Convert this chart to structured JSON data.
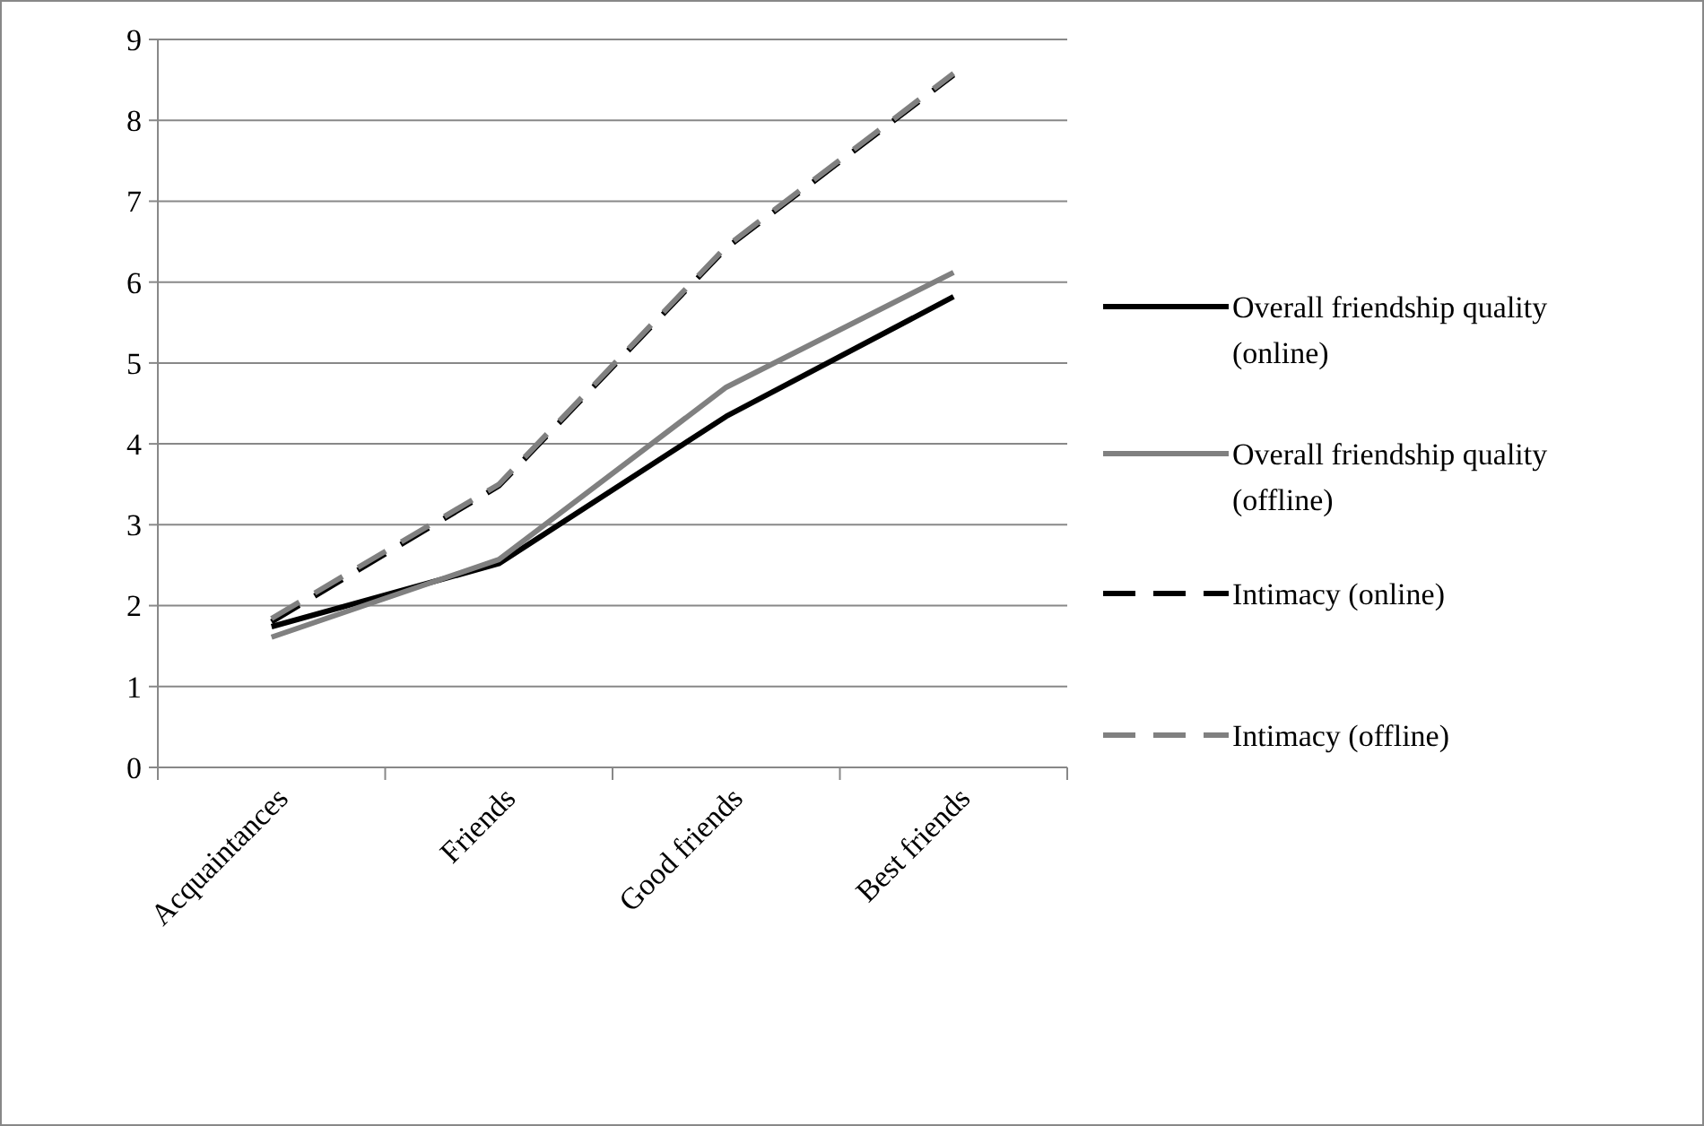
{
  "chart_data": {
    "type": "line",
    "categories": [
      "Acquaintances",
      "Friends",
      "Good friends",
      "Best friends"
    ],
    "series": [
      {
        "name": "Overall friendship quality (online)",
        "color": "#000000",
        "values": [
          1.74,
          2.52,
          4.34,
          5.82
        ],
        "line_style": "solid"
      },
      {
        "name": "Overall friendship quality (offline)",
        "color": "#808080",
        "values": [
          1.61,
          2.57,
          4.7,
          6.12
        ],
        "line_style": "solid"
      },
      {
        "name": "Intimacy (online)",
        "color": "#000000",
        "values": [
          1.8,
          3.48,
          6.42,
          8.56
        ],
        "line_style": "dashed"
      },
      {
        "name": "Intimacy (offline)",
        "color": "#808080",
        "values": [
          1.84,
          3.5,
          6.44,
          8.58
        ],
        "line_style": "dashed"
      }
    ],
    "ylim": [
      0,
      9
    ],
    "yticks": [
      0,
      1,
      2,
      3,
      4,
      5,
      6,
      7,
      8,
      9
    ],
    "grid": "y",
    "legend": "right",
    "marker": "none"
  }
}
